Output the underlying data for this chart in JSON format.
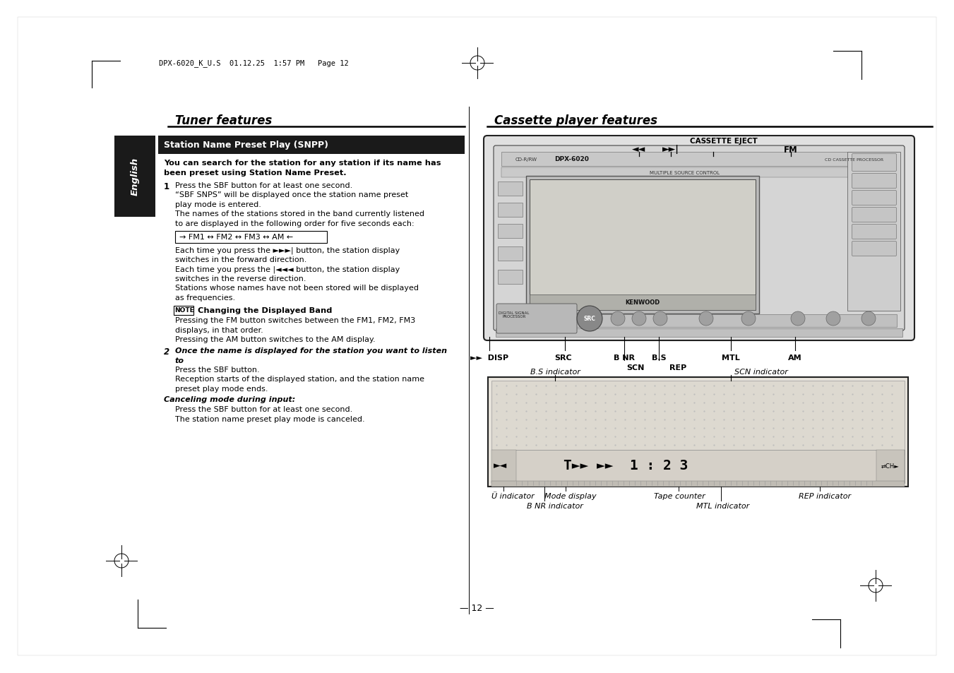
{
  "bg_color": "#ffffff",
  "header_text": "DPX-6020_K_U.S  01.12.25  1:57 PM   Page 12",
  "title_left": "Tuner features",
  "title_right": "Cassette player features",
  "section_title": "Station Name Preset Play (SNPP)",
  "section_bg": "#1a1a1a",
  "section_fg": "#ffffff",
  "english_bg": "#1a1a1a",
  "english_fg": "#ffffff",
  "body_intro_1": "You can search for the station for any station if its name has",
  "body_intro_2": "been preset using Station Name Preset.",
  "step1_lines": [
    "Press the SBF button for at least one second.",
    "“SBF SNPS” will be displayed once the station name preset",
    "play mode is entered.",
    "The names of the stations stored in the band currently listened",
    "to are displayed in the following order for five seconds each:"
  ],
  "fm_flow": "→ FM1 ↔ FM2 ↔ FM3 ↔ AM ←",
  "step1b_lines": [
    "Each time you press the ►►►| button, the station display",
    "switches in the forward direction.",
    "Each time you press the |◄◄◄ button, the station display",
    "switches in the reverse direction.",
    "Stations whose names have not been stored will be displayed",
    "as frequencies."
  ],
  "note_label": "NOTE",
  "note_heading": "Changing the Displayed Band",
  "note_lines": [
    "Pressing the FM button switches between the FM1, FM2, FM3",
    "displays, in that order.",
    "Pressing the AM button switches to the AM display."
  ],
  "step2_italic_lines": [
    "Once the name is displayed for the station you want to listen",
    "to"
  ],
  "step2_lines": [
    "Press the SBF button.",
    "Reception starts of the displayed station, and the station name",
    "preset play mode ends."
  ],
  "cancel_heading": "Canceling mode during input:",
  "cancel_lines": [
    "Press the SBF button for at least one second.",
    "The station name preset play mode is canceled."
  ],
  "page_number": "— 12 —",
  "label_cassette_eject": "CASSETTE EJECT",
  "label_fm": "FM",
  "label_rewind": "◄◄",
  "label_ffwd": "►►►|",
  "bottom_labels": [
    [
      "►►  DISP",
      693,
      502
    ],
    [
      "SRC",
      798,
      502
    ],
    [
      "B NR",
      884,
      502
    ],
    [
      "B.S",
      933,
      502
    ],
    [
      "MTL",
      1035,
      502
    ],
    [
      "AM",
      1126,
      502
    ],
    [
      "SCN",
      900,
      516
    ],
    [
      "REP",
      960,
      516
    ]
  ],
  "ind_label_bs": "B.S indicator",
  "ind_label_scn": "SCN indicator",
  "ind_label_u": "Ü indicator",
  "ind_label_mode": "Mode display",
  "ind_label_tape": "Tape counter",
  "ind_label_rep": "REP indicator",
  "ind_label_bnr": "B NR indicator",
  "ind_label_mtl": "MTL indicator"
}
